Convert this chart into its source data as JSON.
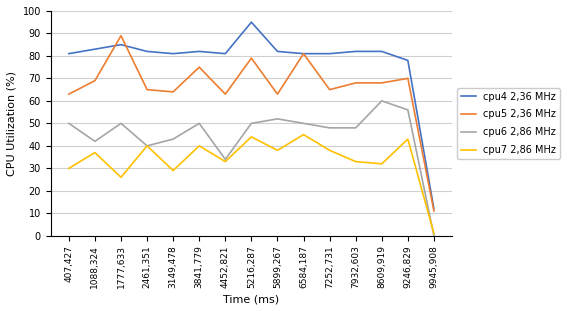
{
  "x_labels": [
    "407,427",
    "1088,324",
    "1777,633",
    "2461,351",
    "3149,478",
    "3841,779",
    "4452,821",
    "5216,287",
    "5899,267",
    "6584,187",
    "7252,731",
    "7932,603",
    "8609,919",
    "9246,829",
    "9945,908"
  ],
  "x_values": [
    407427,
    1088324,
    1777633,
    2461351,
    3149478,
    3841779,
    4452821,
    5216287,
    5899267,
    6584187,
    7252731,
    7932603,
    8609919,
    9246829,
    9945908
  ],
  "cpu4": [
    81,
    83,
    85,
    82,
    81,
    82,
    81,
    95,
    82,
    81,
    81,
    82,
    82,
    78,
    12
  ],
  "cpu5": [
    63,
    69,
    89,
    65,
    64,
    75,
    63,
    79,
    63,
    81,
    65,
    68,
    68,
    70,
    11
  ],
  "cpu6": [
    50,
    42,
    50,
    40,
    43,
    50,
    34,
    50,
    52,
    50,
    48,
    48,
    60,
    56,
    0
  ],
  "cpu7": [
    30,
    37,
    26,
    40,
    29,
    40,
    33,
    44,
    38,
    45,
    38,
    33,
    32,
    43,
    1
  ],
  "colors": {
    "cpu4": "#4472C4",
    "cpu5": "#ED7D31",
    "cpu6": "#A5A5A5",
    "cpu7": "#FFC000"
  },
  "legend_labels": {
    "cpu4": "cpu4 2,36 MHz",
    "cpu5": "cpu5 2,36 MHz",
    "cpu6": "cpu6 2,86 MHz",
    "cpu7": "cpu7 2,86 MHz"
  },
  "xlabel": "Time (ms)",
  "ylabel": "CPU Utilization (%)",
  "ylim": [
    0,
    100
  ],
  "yticks": [
    0,
    10,
    20,
    30,
    40,
    50,
    60,
    70,
    80,
    90,
    100
  ],
  "background_color": "#ffffff",
  "grid_color": "#d0d0d0"
}
